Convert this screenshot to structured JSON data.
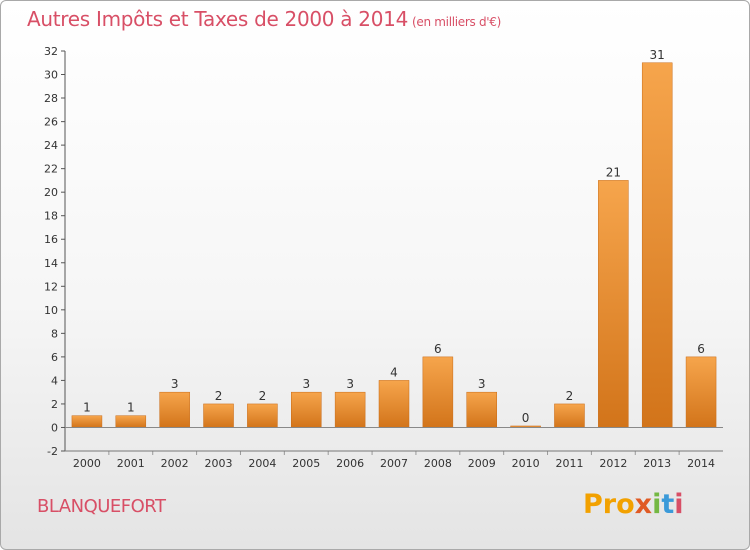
{
  "chart_data": {
    "type": "bar",
    "title": "Autres Impôts et Taxes de 2000 à 2014",
    "unit_label": "(en milliers d'€)",
    "categories": [
      "2000",
      "2001",
      "2002",
      "2003",
      "2004",
      "2005",
      "2006",
      "2007",
      "2008",
      "2009",
      "2010",
      "2011",
      "2012",
      "2013",
      "2014"
    ],
    "values": [
      1,
      1,
      3,
      2,
      2,
      3,
      3,
      4,
      6,
      3,
      0,
      2,
      21,
      31,
      6
    ],
    "data_labels": [
      "1",
      "1",
      "3",
      "2",
      "2",
      "3",
      "3",
      "4",
      "6",
      "3",
      "0",
      "2",
      "21",
      "31",
      "6"
    ],
    "yticks": [
      -2,
      0,
      2,
      4,
      6,
      8,
      10,
      12,
      14,
      16,
      18,
      20,
      22,
      24,
      26,
      28,
      30,
      32
    ],
    "ylim": [
      -2,
      32
    ],
    "xlabel": "",
    "ylabel": "",
    "grid": false,
    "bar_color_top": "#f6a54c",
    "bar_color_bottom": "#d2741a"
  },
  "place_name": "BLANQUEFORT",
  "logo": {
    "p1": "Pro",
    "p2": "x",
    "p3": "i",
    "p4": "t",
    "p5": "i"
  }
}
